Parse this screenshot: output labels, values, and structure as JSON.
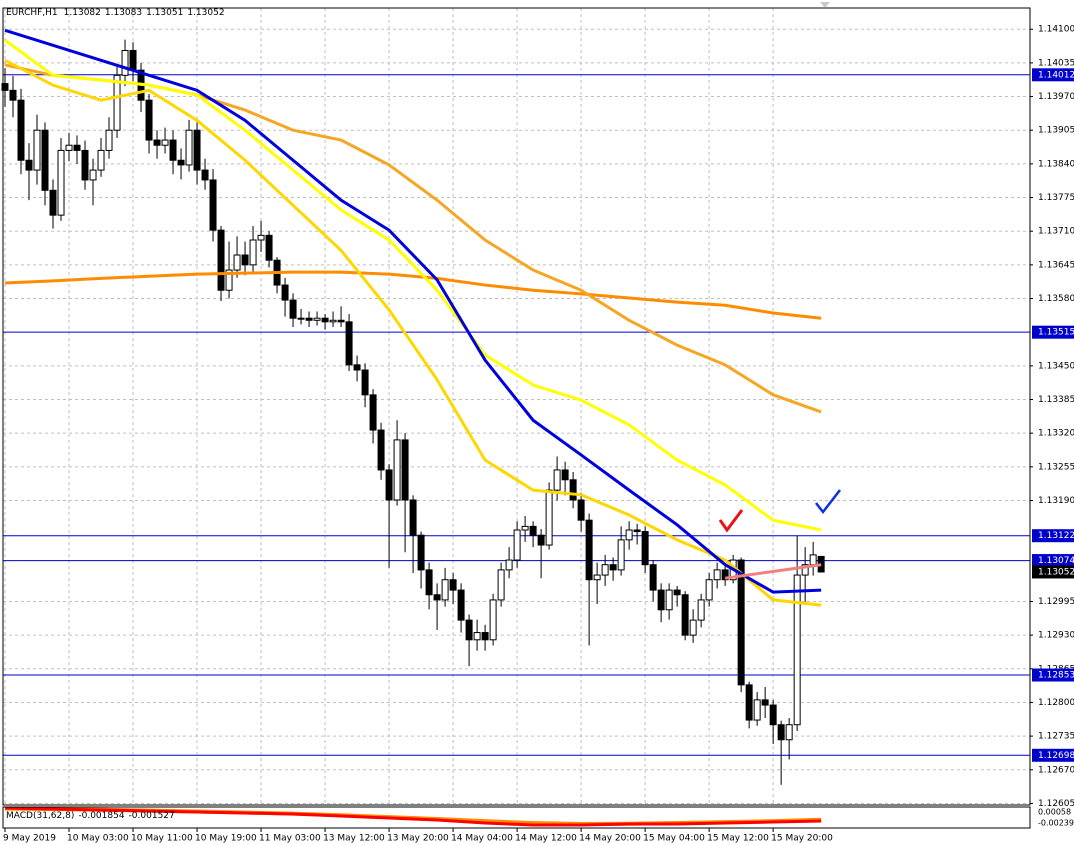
{
  "chart_data": {
    "type": "candlestick",
    "title": "EURCHF,H1",
    "xlim": [
      -0.25,
      128.1
    ],
    "ylim": [
      1.12602,
      1.14141
    ],
    "grid": true,
    "xticks": [
      {
        "value": 0,
        "label": "9 May 2019"
      },
      {
        "value": 8,
        "label": "10 May 03:00"
      },
      {
        "value": 16,
        "label": "10 May 11:00"
      },
      {
        "value": 24,
        "label": "10 May 19:00"
      },
      {
        "value": 32,
        "label": "11 May 03:00"
      },
      {
        "value": 40,
        "label": "13 May 12:00"
      },
      {
        "value": 48,
        "label": "13 May 20:00"
      },
      {
        "value": 56,
        "label": "14 May 04:00"
      },
      {
        "value": 64,
        "label": "14 May 12:00"
      },
      {
        "value": 72,
        "label": "14 May 20:00"
      },
      {
        "value": 80,
        "label": "15 May 04:00"
      },
      {
        "value": 88,
        "label": "15 May 12:00"
      },
      {
        "value": 96,
        "label": "15 May 20:00"
      }
    ],
    "yticks": [
      {
        "value": 1.141,
        "label": "1.14100"
      },
      1.14035,
      {
        "value": 1.1397,
        "label": "1.13970"
      },
      1.13905,
      {
        "value": 1.1384,
        "label": "1.13840"
      },
      1.13775,
      {
        "value": 1.1371,
        "label": "1.13710"
      },
      1.13645,
      {
        "value": 1.1358,
        "label": "1.13580"
      },
      {
        "value": 1.1345,
        "label": "1.13450"
      },
      1.13385,
      {
        "value": 1.1332,
        "label": "1.13320"
      },
      1.13255,
      {
        "value": 1.1319,
        "label": "1.13190"
      },
      1.12995,
      {
        "value": 1.1293,
        "label": "1.12930"
      },
      1.12865,
      {
        "value": 1.128,
        "label": "1.12800"
      },
      1.12735,
      {
        "value": 1.1267,
        "label": "1.12670"
      },
      1.12605
    ],
    "candles": {
      "up_color": "#ffffff",
      "down_color": "#000000",
      "open": [
        1.13995,
        1.13982,
        1.13963,
        1.13847,
        1.13828,
        1.13905,
        1.13789,
        1.13741,
        1.13866,
        1.13876,
        1.13866,
        1.13809,
        1.13828,
        1.13866,
        1.13905,
        1.14011,
        1.14059,
        1.14021,
        1.13963,
        1.13886,
        1.13876,
        1.13886,
        1.13847,
        1.13838,
        1.13905,
        1.13828,
        1.13809,
        1.13712,
        1.13596,
        1.13635,
        1.13664,
        1.13645,
        1.13693,
        1.13702,
        1.13654,
        1.13606,
        1.13577,
        1.13542,
        1.13542,
        1.13538,
        1.13542,
        1.13535,
        1.13538,
        1.13535,
        1.13452,
        1.13442,
        1.13394,
        1.13326,
        1.13249,
        1.13191,
        1.13307,
        1.13191,
        1.13123,
        1.13056,
        1.13008,
        1.12998,
        1.13037,
        1.13017,
        1.12959,
        1.12921,
        1.12935,
        1.12921,
        1.12998,
        1.13056,
        1.13075,
        1.13133,
        1.1314,
        1.13123,
        1.13104,
        1.1321,
        1.13249,
        1.1323,
        1.13191,
        1.13152,
        1.13037,
        1.13046,
        1.13066,
        1.13056,
        1.13114,
        1.13133,
        1.1313,
        1.13066,
        1.13017,
        1.12979,
        1.13017,
        1.13008,
        1.1293,
        1.12959,
        1.12998,
        1.13037,
        1.13056,
        1.13037,
        1.13075,
        1.12834,
        1.12766,
        1.12805,
        1.12795,
        1.12757,
        1.12728,
        1.12757,
        1.13046,
        1.13066,
        1.13082
      ],
      "high": [
        1.14025,
        1.1401,
        1.13985,
        1.1388,
        1.13935,
        1.1392,
        1.1381,
        1.1389,
        1.139,
        1.13895,
        1.13885,
        1.1385,
        1.1389,
        1.1393,
        1.1403,
        1.1408,
        1.14075,
        1.14035,
        1.13975,
        1.13905,
        1.1391,
        1.13905,
        1.1387,
        1.13925,
        1.1392,
        1.1385,
        1.1383,
        1.1372,
        1.1369,
        1.137,
        1.1369,
        1.1372,
        1.1373,
        1.1371,
        1.1366,
        1.1362,
        1.1359,
        1.1356,
        1.13555,
        1.13555,
        1.1355,
        1.13555,
        1.13565,
        1.1355,
        1.1347,
        1.13455,
        1.13405,
        1.1334,
        1.1326,
        1.13345,
        1.1332,
        1.132,
        1.1313,
        1.1307,
        1.1303,
        1.1306,
        1.1305,
        1.1303,
        1.1297,
        1.1296,
        1.1295,
        1.1301,
        1.1307,
        1.131,
        1.1315,
        1.1316,
        1.1315,
        1.13135,
        1.13225,
        1.13275,
        1.13265,
        1.13245,
        1.13205,
        1.13165,
        1.1307,
        1.13085,
        1.1308,
        1.1314,
        1.1315,
        1.13145,
        1.1314,
        1.13075,
        1.1303,
        1.1303,
        1.13025,
        1.13015,
        1.1298,
        1.1301,
        1.1305,
        1.1307,
        1.13065,
        1.13085,
        1.1308,
        1.1284,
        1.1282,
        1.1283,
        1.12805,
        1.12765,
        1.1277,
        1.13122,
        1.131,
        1.1311,
        1.13083
      ],
      "low": [
        1.1395,
        1.1393,
        1.1382,
        1.1377,
        1.138,
        1.1376,
        1.13715,
        1.1373,
        1.13845,
        1.1384,
        1.1379,
        1.1376,
        1.13815,
        1.1385,
        1.1389,
        1.1399,
        1.14,
        1.1394,
        1.1386,
        1.1385,
        1.1386,
        1.1382,
        1.1381,
        1.13825,
        1.138,
        1.1379,
        1.1369,
        1.13575,
        1.1358,
        1.1362,
        1.13625,
        1.1363,
        1.1367,
        1.1364,
        1.1359,
        1.13545,
        1.13525,
        1.1353,
        1.13525,
        1.13528,
        1.1352,
        1.13525,
        1.13525,
        1.1344,
        1.1342,
        1.1337,
        1.133,
        1.1323,
        1.1306,
        1.1318,
        1.1309,
        1.1305,
        1.1302,
        1.1298,
        1.1294,
        1.12985,
        1.1299,
        1.12935,
        1.1287,
        1.129,
        1.129,
        1.1291,
        1.12985,
        1.1304,
        1.1306,
        1.1311,
        1.131,
        1.1304,
        1.13095,
        1.1319,
        1.132,
        1.13175,
        1.1313,
        1.1291,
        1.1299,
        1.13025,
        1.13035,
        1.13045,
        1.13095,
        1.13105,
        1.1305,
        1.12995,
        1.12955,
        1.1296,
        1.12985,
        1.1292,
        1.12915,
        1.12945,
        1.12985,
        1.1302,
        1.13025,
        1.1303,
        1.1282,
        1.1275,
        1.12755,
        1.1277,
        1.1272,
        1.12641,
        1.1269,
        1.12745,
        1.1299,
        1.13045,
        1.13051
      ],
      "close": [
        1.13982,
        1.13963,
        1.13847,
        1.13828,
        1.13905,
        1.13789,
        1.13741,
        1.13866,
        1.13876,
        1.13866,
        1.13809,
        1.13828,
        1.13866,
        1.13905,
        1.14011,
        1.14059,
        1.14021,
        1.13963,
        1.13886,
        1.13876,
        1.13886,
        1.13847,
        1.13838,
        1.13905,
        1.13828,
        1.13809,
        1.13712,
        1.13596,
        1.13635,
        1.13664,
        1.13645,
        1.13693,
        1.13702,
        1.13654,
        1.13606,
        1.13577,
        1.13542,
        1.13542,
        1.13538,
        1.13542,
        1.13535,
        1.13538,
        1.13535,
        1.13452,
        1.13442,
        1.13394,
        1.13326,
        1.13249,
        1.13191,
        1.13307,
        1.13191,
        1.13123,
        1.13056,
        1.13008,
        1.12998,
        1.13037,
        1.13017,
        1.12959,
        1.12921,
        1.12935,
        1.12921,
        1.12998,
        1.13056,
        1.13075,
        1.13133,
        1.1314,
        1.13123,
        1.13104,
        1.1321,
        1.13249,
        1.1323,
        1.13191,
        1.13152,
        1.13037,
        1.13046,
        1.13066,
        1.13056,
        1.13114,
        1.13133,
        1.1313,
        1.13066,
        1.13017,
        1.12979,
        1.13017,
        1.13008,
        1.1293,
        1.12959,
        1.12998,
        1.13037,
        1.13056,
        1.13037,
        1.13075,
        1.12834,
        1.12766,
        1.12805,
        1.12795,
        1.12757,
        1.12728,
        1.12757,
        1.13046,
        1.13066,
        1.13085,
        1.13052
      ]
    },
    "series": [
      {
        "color": "#ff8c00",
        "x": [
          0,
          6,
          12,
          18,
          24,
          30,
          36,
          42,
          48,
          54,
          60,
          66,
          72,
          78,
          84,
          90,
          96,
          102
        ],
        "values": [
          1.1361,
          1.13614,
          1.13619,
          1.13623,
          1.13627,
          1.13629,
          1.13631,
          1.13631,
          1.13627,
          1.13619,
          1.13606,
          1.13596,
          1.13589,
          1.13581,
          1.13573,
          1.13567,
          1.13552,
          1.13542
        ]
      },
      {
        "color": "#f5a623",
        "x": [
          0,
          6,
          12,
          18,
          24,
          30,
          36,
          42,
          48,
          54,
          60,
          66,
          72,
          78,
          84,
          90,
          96,
          102
        ],
        "values": [
          1.14031,
          1.14011,
          1.14002,
          1.13992,
          1.13973,
          1.13944,
          1.13905,
          1.13886,
          1.13838,
          1.1377,
          1.13693,
          1.13635,
          1.13596,
          1.13538,
          1.1349,
          1.13452,
          1.13394,
          1.13361
        ]
      },
      {
        "color": "#ffd700",
        "x": [
          0,
          6,
          12,
          18,
          24,
          30,
          36,
          42,
          48,
          54,
          60,
          66,
          72,
          78,
          84,
          90,
          96,
          102
        ],
        "values": [
          1.1404,
          1.13992,
          1.13963,
          1.13982,
          1.13924,
          1.13847,
          1.1376,
          1.13673,
          1.13558,
          1.13423,
          1.13268,
          1.1321,
          1.13201,
          1.13162,
          1.13114,
          1.13075,
          1.12998,
          1.12988
        ]
      },
      {
        "color": "#ffff00",
        "x": [
          0,
          6,
          12,
          18,
          24,
          30,
          36,
          42,
          48,
          54,
          60,
          66,
          72,
          78,
          84,
          90,
          96,
          102
        ],
        "values": [
          1.14079,
          1.14011,
          1.14002,
          1.13992,
          1.13973,
          1.13905,
          1.13828,
          1.13751,
          1.13693,
          1.13596,
          1.13471,
          1.13413,
          1.13384,
          1.13336,
          1.13268,
          1.1322,
          1.13152,
          1.13133
        ]
      },
      {
        "color": "#0000dd",
        "x": [
          0,
          6,
          12,
          18,
          24,
          30,
          36,
          42,
          48,
          54,
          60,
          66,
          72,
          78,
          84,
          90,
          96,
          102
        ],
        "values": [
          1.14098,
          1.14069,
          1.1404,
          1.14011,
          1.13982,
          1.13924,
          1.13847,
          1.1377,
          1.13712,
          1.13616,
          1.13461,
          1.13345,
          1.13278,
          1.1321,
          1.13143,
          1.13066,
          1.13013,
          1.13017
        ]
      },
      {
        "color": "#f08080",
        "x": [
          90,
          102
        ],
        "values": [
          1.1304,
          1.13066
        ]
      }
    ],
    "levels": [
      {
        "value": 1.14012,
        "color": "#0000cd"
      },
      {
        "value": 1.13515,
        "color": "#0000cd"
      },
      {
        "value": 1.13122,
        "color": "#0000cd"
      },
      {
        "value": 1.13074,
        "color": "#0000cd"
      },
      {
        "value": 1.12853,
        "color": "#0000cd"
      },
      {
        "value": 1.12698,
        "color": "#0000cd"
      }
    ],
    "macd": {
      "label": "MACD(31,62,8)",
      "ylim": [
        -0.00374,
        0.00193
      ],
      "yticks": [
        0.00058,
        -0.00239
      ],
      "x": [
        0,
        6,
        12,
        18,
        24,
        30,
        36,
        42,
        48,
        54,
        60,
        66,
        72,
        78,
        84,
        90,
        96,
        102
      ],
      "macd": [
        0.00166,
        0.00139,
        0.00112,
        0.00085,
        0.00058,
        0.00031,
        4e-05,
        -0.0005,
        -0.00104,
        -0.00158,
        -0.00239,
        -0.00293,
        -0.00293,
        -0.00266,
        -0.00266,
        -0.00239,
        -0.00212,
        -0.001854
      ],
      "signal": [
        0.0015,
        0.0014,
        0.0012,
        0.00095,
        0.0007,
        0.00045,
        0.00015,
        -0.0003,
        -0.0008,
        -0.0013,
        -0.0019,
        -0.0024,
        -0.00265,
        -0.0026,
        -0.0024,
        -0.00215,
        -0.0019,
        -0.001527
      ],
      "macd_color": "#ff0000",
      "signal_color": "#ff8c00"
    }
  }
}
